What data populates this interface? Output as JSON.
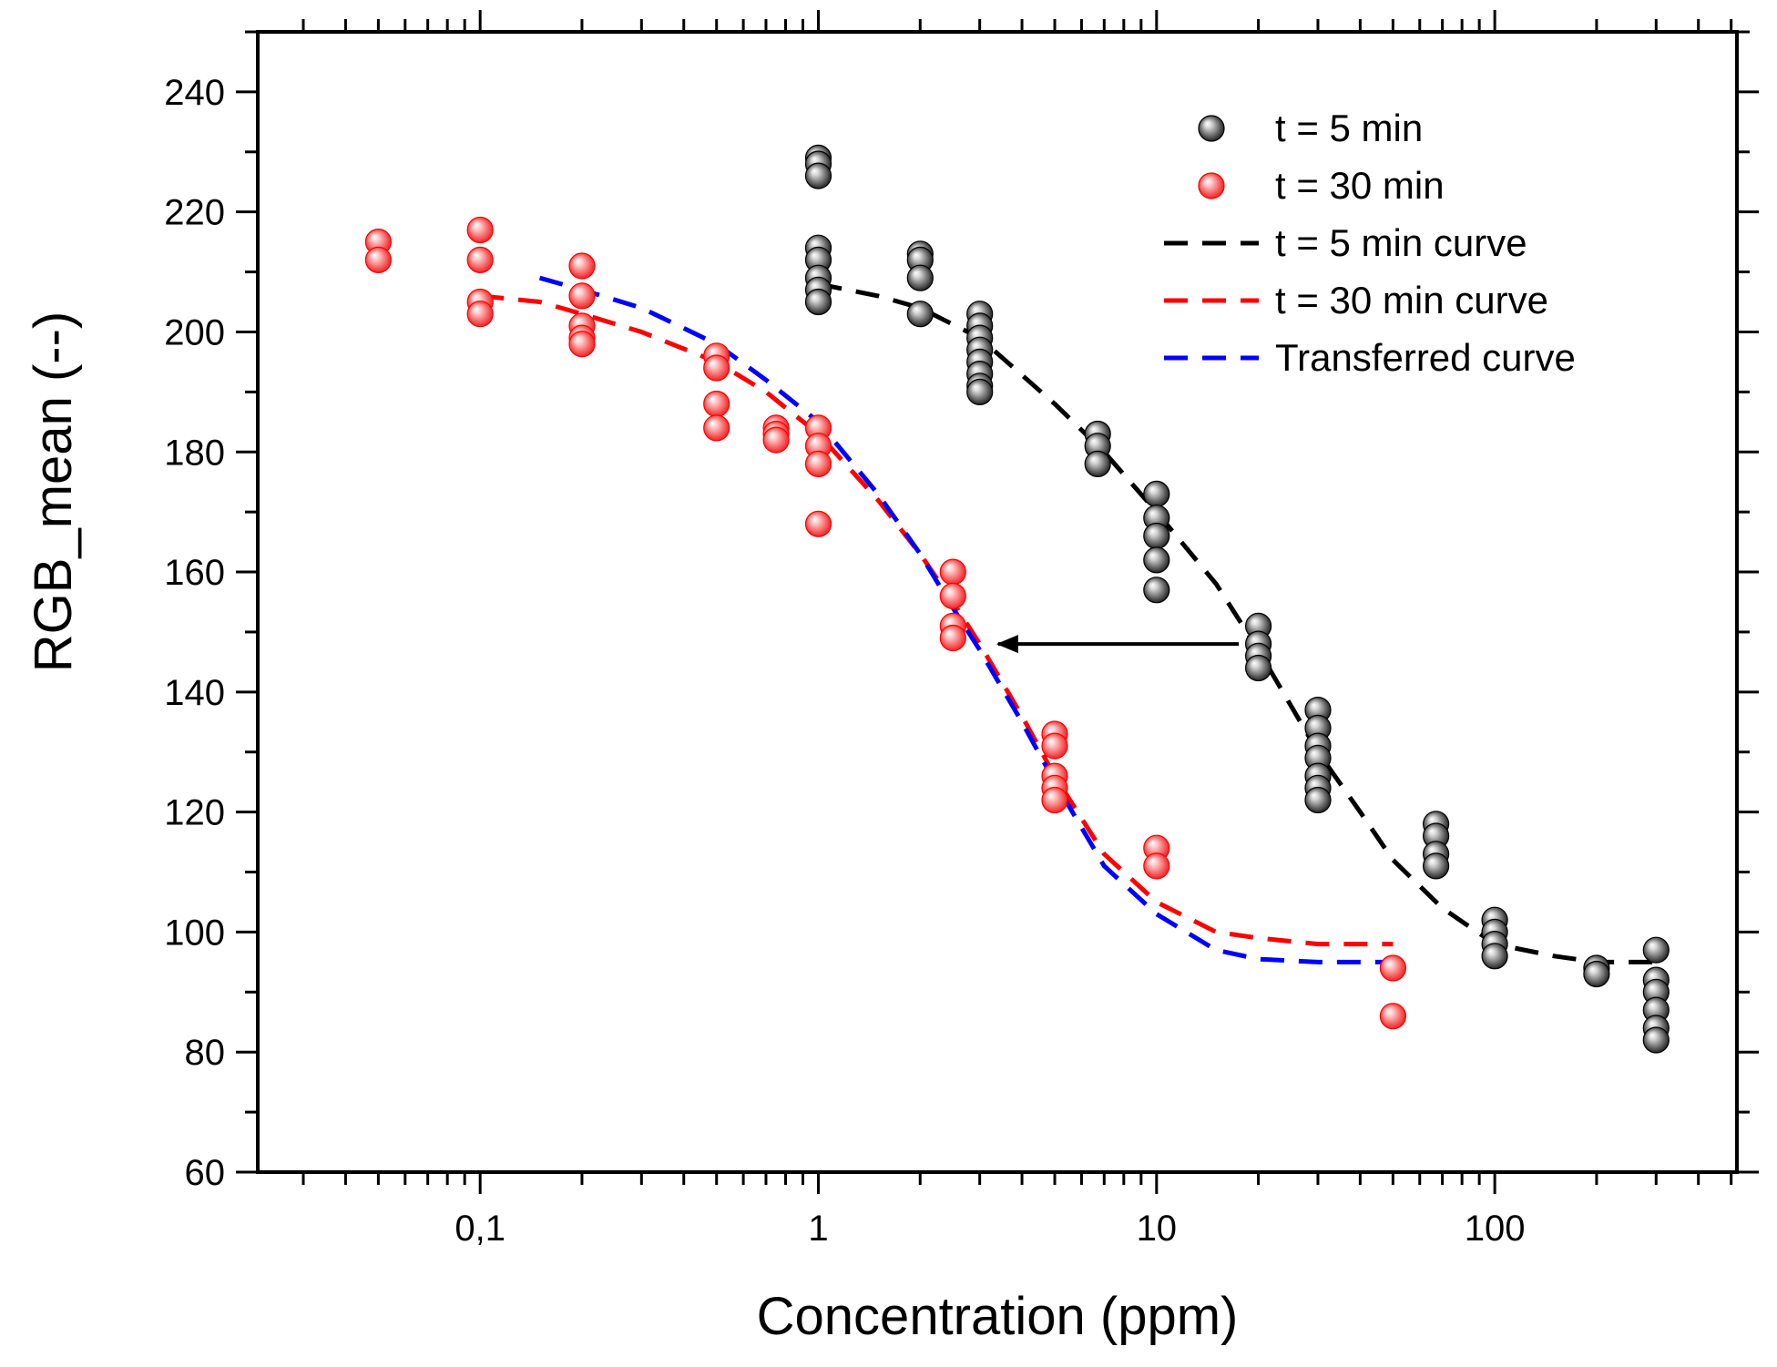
{
  "chart_data": {
    "type": "scatter",
    "xlabel": "Concentration (ppm)",
    "ylabel": "RGB_mean (--)",
    "x_scale": "log",
    "xlim": [
      0.022,
      520
    ],
    "ylim": [
      60,
      250
    ],
    "x_ticks": [
      {
        "value": 0.1,
        "label": "0,1"
      },
      {
        "value": 1,
        "label": "1"
      },
      {
        "value": 10,
        "label": "10"
      },
      {
        "value": 100,
        "label": "100"
      }
    ],
    "y_ticks": [
      60,
      80,
      100,
      120,
      140,
      160,
      180,
      200,
      220,
      240
    ],
    "grid": false,
    "legend_position": "top-right",
    "colors": {
      "t5": "#000000",
      "t30": "#ff0000",
      "transferred": "#0000ff"
    },
    "series": [
      {
        "name": "t = 5 min",
        "kind": "points",
        "color": "#000000",
        "points": [
          [
            1,
            229
          ],
          [
            1,
            228
          ],
          [
            1,
            226
          ],
          [
            1,
            214
          ],
          [
            1,
            212
          ],
          [
            1,
            209
          ],
          [
            1,
            207
          ],
          [
            1,
            205
          ],
          [
            2,
            213
          ],
          [
            2,
            212
          ],
          [
            2,
            209
          ],
          [
            2,
            203
          ],
          [
            3,
            203
          ],
          [
            3,
            201
          ],
          [
            3,
            199
          ],
          [
            3,
            197
          ],
          [
            3,
            195
          ],
          [
            3,
            193
          ],
          [
            3,
            191
          ],
          [
            3,
            190
          ],
          [
            6.7,
            183
          ],
          [
            6.7,
            181
          ],
          [
            6.7,
            178
          ],
          [
            10,
            173
          ],
          [
            10,
            169
          ],
          [
            10,
            166
          ],
          [
            10,
            162
          ],
          [
            10,
            157
          ],
          [
            20,
            151
          ],
          [
            20,
            148
          ],
          [
            20,
            146
          ],
          [
            20,
            144
          ],
          [
            30,
            137
          ],
          [
            30,
            134
          ],
          [
            30,
            131
          ],
          [
            30,
            129
          ],
          [
            30,
            126
          ],
          [
            30,
            124
          ],
          [
            30,
            122
          ],
          [
            67,
            118
          ],
          [
            67,
            116
          ],
          [
            67,
            113
          ],
          [
            67,
            111
          ],
          [
            100,
            102
          ],
          [
            100,
            100
          ],
          [
            100,
            98
          ],
          [
            100,
            96
          ],
          [
            200,
            94
          ],
          [
            200,
            93
          ],
          [
            300,
            97
          ],
          [
            300,
            92
          ],
          [
            300,
            90
          ],
          [
            300,
            87
          ],
          [
            300,
            84
          ],
          [
            300,
            82
          ]
        ]
      },
      {
        "name": "t = 30 min",
        "kind": "points",
        "color": "#ff0000",
        "points": [
          [
            0.05,
            215
          ],
          [
            0.05,
            212
          ],
          [
            0.1,
            217
          ],
          [
            0.1,
            212
          ],
          [
            0.1,
            205
          ],
          [
            0.1,
            203
          ],
          [
            0.2,
            211
          ],
          [
            0.2,
            206
          ],
          [
            0.2,
            201
          ],
          [
            0.2,
            199
          ],
          [
            0.2,
            198
          ],
          [
            0.5,
            196
          ],
          [
            0.5,
            194
          ],
          [
            0.5,
            188
          ],
          [
            0.5,
            184
          ],
          [
            0.75,
            184
          ],
          [
            0.75,
            183
          ],
          [
            0.75,
            182
          ],
          [
            1,
            184
          ],
          [
            1,
            181
          ],
          [
            1,
            178
          ],
          [
            1,
            168
          ],
          [
            2.5,
            160
          ],
          [
            2.5,
            156
          ],
          [
            2.5,
            151
          ],
          [
            2.5,
            149
          ],
          [
            5,
            133
          ],
          [
            5,
            131
          ],
          [
            5,
            126
          ],
          [
            5,
            124
          ],
          [
            5,
            122
          ],
          [
            10,
            114
          ],
          [
            10,
            111
          ],
          [
            50,
            94
          ],
          [
            50,
            86
          ]
        ]
      },
      {
        "name": "t = 5 min curve",
        "kind": "line",
        "style": "dashed",
        "color": "#000000",
        "points": [
          [
            1,
            208
          ],
          [
            1.5,
            206
          ],
          [
            2,
            204
          ],
          [
            3,
            199
          ],
          [
            5,
            188
          ],
          [
            7,
            180
          ],
          [
            10,
            170
          ],
          [
            15,
            158
          ],
          [
            20,
            147
          ],
          [
            30,
            130
          ],
          [
            40,
            120
          ],
          [
            50,
            112
          ],
          [
            70,
            104
          ],
          [
            100,
            98
          ],
          [
            150,
            96
          ],
          [
            200,
            95
          ],
          [
            300,
            95
          ]
        ]
      },
      {
        "name": "t = 30 min curve",
        "kind": "line",
        "style": "dashed",
        "color": "#ff0000",
        "points": [
          [
            0.1,
            206
          ],
          [
            0.15,
            205
          ],
          [
            0.2,
            203
          ],
          [
            0.3,
            200
          ],
          [
            0.5,
            195
          ],
          [
            0.7,
            190
          ],
          [
            1,
            183
          ],
          [
            1.5,
            172
          ],
          [
            2,
            163
          ],
          [
            2.5,
            155
          ],
          [
            3,
            148
          ],
          [
            4,
            136
          ],
          [
            5,
            126
          ],
          [
            7,
            113
          ],
          [
            10,
            105
          ],
          [
            15,
            100
          ],
          [
            20,
            99
          ],
          [
            30,
            98
          ],
          [
            50,
            98
          ]
        ]
      },
      {
        "name": "Transferred curve",
        "kind": "line",
        "style": "dashed",
        "color": "#0000ff",
        "points": [
          [
            0.15,
            209
          ],
          [
            0.2,
            207
          ],
          [
            0.3,
            204
          ],
          [
            0.5,
            198
          ],
          [
            0.7,
            192
          ],
          [
            1,
            185
          ],
          [
            1.5,
            173
          ],
          [
            2,
            163
          ],
          [
            2.5,
            154
          ],
          [
            3,
            147
          ],
          [
            4,
            135
          ],
          [
            5,
            125
          ],
          [
            7,
            111
          ],
          [
            10,
            103
          ],
          [
            15,
            97
          ],
          [
            20,
            95.5
          ],
          [
            30,
            95
          ],
          [
            50,
            95
          ]
        ]
      }
    ],
    "annotations": [
      {
        "type": "arrow",
        "from": [
          17.5,
          148
        ],
        "to": [
          3.4,
          148
        ],
        "color": "#000000"
      }
    ]
  }
}
